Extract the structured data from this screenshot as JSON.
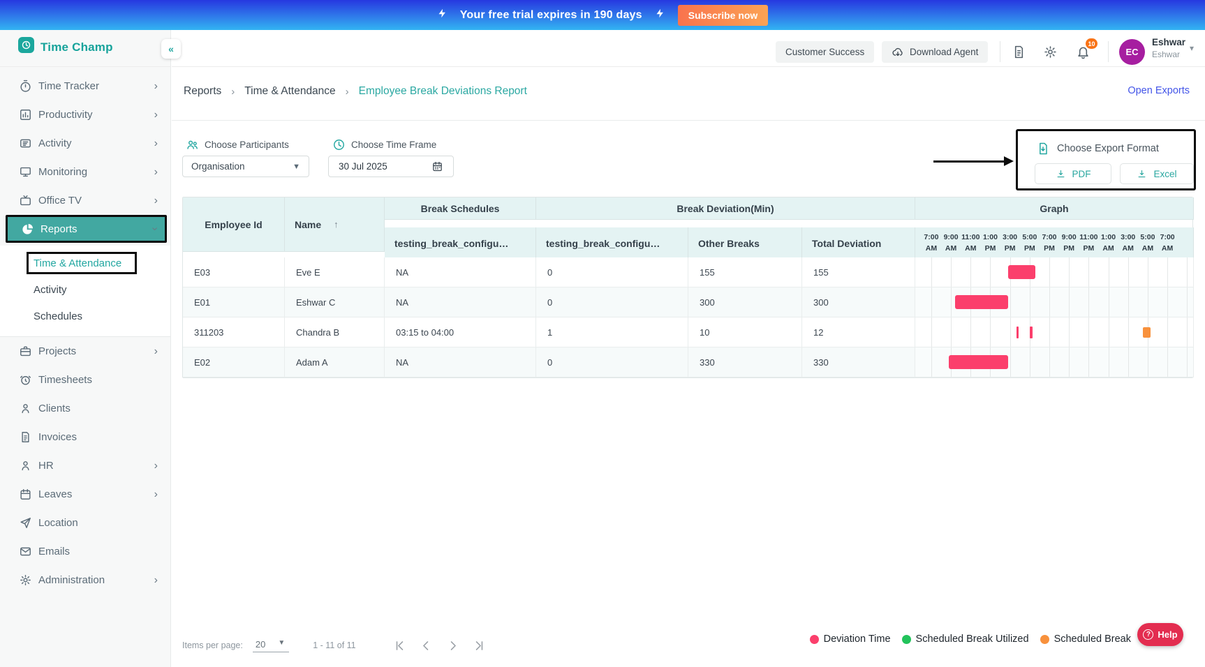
{
  "banner": {
    "message": "Your free trial expires in 190 days",
    "cta": "Subscribe now"
  },
  "brand": {
    "name": "Time Champ",
    "collapse_glyph": "«"
  },
  "topbar": {
    "customer_success": "Customer Success",
    "download_agent": "Download Agent",
    "notification_count": "10",
    "user": {
      "initials": "EC",
      "name": "Eshwar",
      "subtitle": "Eshwar"
    }
  },
  "sidebar": {
    "items": [
      {
        "label": "Time Tracker",
        "icon": "stopwatch-icon",
        "chevron": true
      },
      {
        "label": "Productivity",
        "icon": "bar-chart-icon",
        "chevron": true
      },
      {
        "label": "Activity",
        "icon": "activity-icon",
        "chevron": true
      },
      {
        "label": "Monitoring",
        "icon": "monitor-icon",
        "chevron": true
      },
      {
        "label": "Office TV",
        "icon": "tv-icon",
        "chevron": true
      },
      {
        "label": "Reports",
        "icon": "pie-chart-icon",
        "chevron": true,
        "active": true,
        "annotated": true,
        "children": [
          {
            "label": "Time & Attendance",
            "active": true,
            "annotated": true
          },
          {
            "label": "Activity"
          },
          {
            "label": "Schedules"
          }
        ]
      },
      {
        "label": "Projects",
        "icon": "briefcase-icon",
        "chevron": true
      },
      {
        "label": "Timesheets",
        "icon": "alarm-clock-icon",
        "chevron": false
      },
      {
        "label": "Clients",
        "icon": "person-icon",
        "chevron": false
      },
      {
        "label": "Invoices",
        "icon": "invoice-icon",
        "chevron": false
      },
      {
        "label": "HR",
        "icon": "user-icon",
        "chevron": true
      },
      {
        "label": "Leaves",
        "icon": "calendar-icon",
        "chevron": true
      },
      {
        "label": "Location",
        "icon": "send-icon",
        "chevron": false
      },
      {
        "label": "Emails",
        "icon": "mail-icon",
        "chevron": false
      },
      {
        "label": "Administration",
        "icon": "gear-icon",
        "chevron": true
      }
    ]
  },
  "breadcrumb": {
    "items": [
      "Reports",
      "Time & Attendance"
    ],
    "current": "Employee Break Deviations Report",
    "separator": "›"
  },
  "open_exports": "Open Exports",
  "filters": {
    "participants_label": "Choose Participants",
    "participants_value": "Organisation",
    "timeframe_label": "Choose Time Frame",
    "timeframe_value": "30 Jul 2025"
  },
  "export_panel": {
    "title": "Choose Export Format",
    "pdf": "PDF",
    "excel": "Excel"
  },
  "table": {
    "header": {
      "employee_id": "Employee Id",
      "name": "Name",
      "sort_glyph": "↑",
      "break_schedules": "Break Schedules",
      "break_deviation": "Break Deviation(Min)",
      "graph": "Graph",
      "sub_break_schedule": "testing_break_configu…",
      "sub_break_deviation": "testing_break_configu…",
      "other_breaks": "Other Breaks",
      "total_deviation": "Total Deviation"
    },
    "rows": [
      {
        "employee_id": "E03",
        "name": "Eve E",
        "break_schedule": "NA",
        "break_deviation": "0",
        "other_breaks": "155",
        "total_deviation": "155"
      },
      {
        "employee_id": "E01",
        "name": "Eshwar C",
        "break_schedule": "NA",
        "break_deviation": "0",
        "other_breaks": "300",
        "total_deviation": "300"
      },
      {
        "employee_id": "311203",
        "name": "Chandra B",
        "break_schedule": "03:15 to 04:00",
        "break_deviation": "1",
        "other_breaks": "10",
        "total_deviation": "12"
      },
      {
        "employee_id": "E02",
        "name": "Adam A",
        "break_schedule": "NA",
        "break_deviation": "0",
        "other_breaks": "330",
        "total_deviation": "330"
      }
    ]
  },
  "graph": {
    "time_labels": [
      {
        "t": "7:00",
        "m": "AM"
      },
      {
        "t": "9:00",
        "m": "AM"
      },
      {
        "t": "11:00",
        "m": "AM"
      },
      {
        "t": "1:00",
        "m": "PM"
      },
      {
        "t": "3:00",
        "m": "PM"
      },
      {
        "t": "5:00",
        "m": "PM"
      },
      {
        "t": "7:00",
        "m": "PM"
      },
      {
        "t": "9:00",
        "m": "PM"
      },
      {
        "t": "11:00",
        "m": "PM"
      },
      {
        "t": "1:00",
        "m": "AM"
      },
      {
        "t": "3:00",
        "m": "AM"
      },
      {
        "t": "5:00",
        "m": "AM"
      },
      {
        "t": "7:00",
        "m": "AM"
      }
    ],
    "bars": [
      {
        "row": 0,
        "type": "deviation",
        "left_pct": 33.3,
        "width_pct": 10.0
      },
      {
        "row": 1,
        "type": "deviation",
        "left_pct": 14.3,
        "width_pct": 19.0
      },
      {
        "row": 2,
        "type": "deviation",
        "left_pct": 36.5,
        "width_pct": 0.8,
        "thin": true
      },
      {
        "row": 2,
        "type": "deviation",
        "left_pct": 41.3,
        "width_pct": 1.0,
        "thin": true
      },
      {
        "row": 2,
        "type": "scheduled_break",
        "left_pct": 81.9,
        "width_pct": 2.9
      },
      {
        "row": 3,
        "type": "deviation",
        "left_pct": 12.0,
        "width_pct": 21.3
      }
    ]
  },
  "legend": [
    {
      "label": "Deviation Time",
      "color": "#fb3f6c"
    },
    {
      "label": "Scheduled Break Utilized",
      "color": "#22c35b"
    },
    {
      "label": "Scheduled Break",
      "color": "#f8913c"
    }
  ],
  "pagination": {
    "items_per_page_label": "Items per page:",
    "items_per_page": "20",
    "range": "1 - 11 of 11"
  },
  "help": {
    "label": "Help"
  },
  "colors": {
    "accent_teal": "#23a7a1",
    "deviation_pink": "#fb3f6c",
    "scheduled_green": "#22c35b",
    "break_orange": "#f8913c",
    "open_exports_blue": "#4355e8",
    "help_red": "#e32d50",
    "avatar_purple": "#a61ea0",
    "badge_orange": "#f97316"
  }
}
